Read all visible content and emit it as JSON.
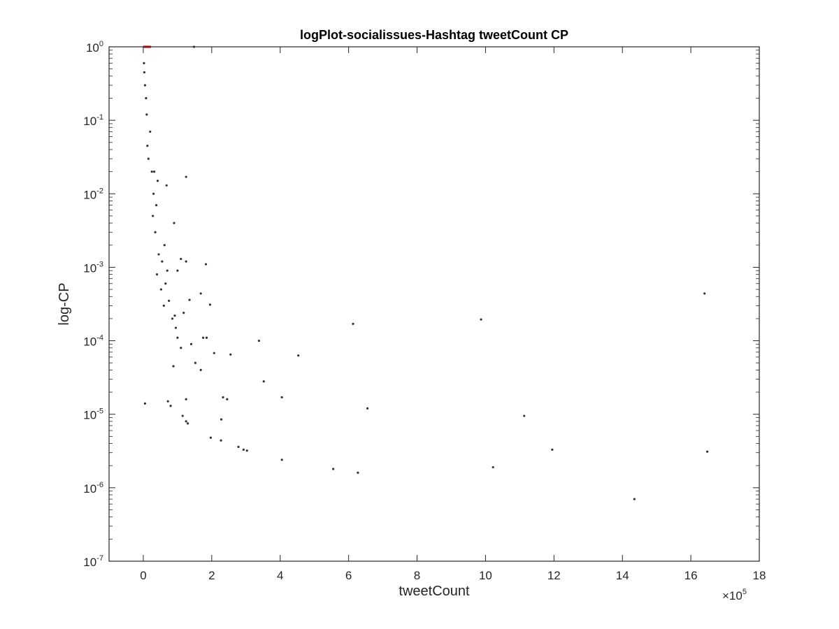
{
  "chart_data": {
    "type": "scatter",
    "title": "logPlot-socialissues-Hashtag tweetCount CP",
    "xlabel": "tweetCount",
    "ylabel": "log-CP",
    "x_multiplier_label": "×10",
    "x_multiplier_exponent": "5",
    "xlim": [
      -100000,
      1800000
    ],
    "ylim": [
      1e-07,
      1
    ],
    "yscale": "log",
    "grid": false,
    "legend": "none",
    "x_ticks": [
      0,
      200000,
      400000,
      600000,
      800000,
      1000000,
      1200000,
      1400000,
      1600000,
      1800000
    ],
    "x_tick_labels": [
      "0",
      "2",
      "4",
      "6",
      "8",
      "10",
      "12",
      "14",
      "16",
      "18"
    ],
    "y_ticks": [
      1e-07,
      1e-06,
      1e-05,
      0.0001,
      0.001,
      0.01,
      0.1,
      1
    ],
    "y_tick_labels": [
      {
        "base": "10",
        "exp": "-7"
      },
      {
        "base": "10",
        "exp": "-6"
      },
      {
        "base": "10",
        "exp": "-5"
      },
      {
        "base": "10",
        "exp": "-4"
      },
      {
        "base": "10",
        "exp": "-3"
      },
      {
        "base": "10",
        "exp": "-2"
      },
      {
        "base": "10",
        "exp": "-1"
      },
      {
        "base": "10",
        "exp": "0"
      }
    ],
    "colors": {
      "points": "#333333",
      "highlight": "#ff0000",
      "axes": "#262626"
    },
    "series": [
      {
        "color": "#333333",
        "points": [
          [
            5000,
            1.4e-05
          ],
          [
            148000,
            1.0
          ],
          [
            125000,
            0.017
          ],
          [
            90000,
            0.004
          ],
          [
            68000,
            0.013
          ],
          [
            20000,
            0.07
          ],
          [
            32000,
            0.02
          ],
          [
            42000,
            0.015
          ],
          [
            125000,
            0.0012
          ],
          [
            183000,
            0.0011
          ],
          [
            168000,
            0.00044
          ],
          [
            195000,
            0.00031
          ],
          [
            185000,
            0.00011
          ],
          [
            175000,
            0.00011
          ],
          [
            140000,
            9e-05
          ],
          [
            152000,
            5e-05
          ],
          [
            168000,
            4e-05
          ],
          [
            207000,
            6.8e-05
          ],
          [
            255000,
            6.5e-05
          ],
          [
            338000,
            0.0001
          ],
          [
            352000,
            2.8e-05
          ],
          [
            233000,
            1.7e-05
          ],
          [
            245000,
            1.6e-05
          ],
          [
            125000,
            1.6e-05
          ],
          [
            405000,
            1.7e-05
          ],
          [
            453000,
            6.3e-05
          ],
          [
            613000,
            0.00017
          ],
          [
            987000,
            0.000195
          ],
          [
            1640000,
            0.00044
          ],
          [
            655000,
            1.2e-05
          ],
          [
            1113000,
            9.5e-06
          ],
          [
            228000,
            8.5e-06
          ],
          [
            197000,
            4.8e-06
          ],
          [
            227000,
            4.4e-06
          ],
          [
            278000,
            3.6e-06
          ],
          [
            293000,
            3.3e-06
          ],
          [
            303000,
            3.2e-06
          ],
          [
            405000,
            2.4e-06
          ],
          [
            555000,
            1.8e-06
          ],
          [
            627000,
            1.6e-06
          ],
          [
            1022000,
            1.9e-06
          ],
          [
            1195000,
            3.3e-06
          ],
          [
            1648000,
            3.1e-06
          ],
          [
            1435000,
            7e-07
          ],
          [
            115000,
            9.5e-06
          ],
          [
            125000,
            8e-06
          ],
          [
            130000,
            7.5e-06
          ],
          [
            80000,
            1.3e-05
          ],
          [
            72000,
            1.5e-05
          ],
          [
            100000,
            0.00011
          ],
          [
            110000,
            8e-05
          ],
          [
            95000,
            0.00015
          ],
          [
            85000,
            0.0002
          ],
          [
            60000,
            0.0003
          ],
          [
            75000,
            0.00035
          ],
          [
            52000,
            0.0005
          ],
          [
            40000,
            0.0008
          ],
          [
            65000,
            0.0006
          ],
          [
            45000,
            0.0015
          ],
          [
            55000,
            0.0012
          ],
          [
            35000,
            0.003
          ],
          [
            28000,
            0.005
          ],
          [
            38000,
            0.007
          ],
          [
            30000,
            0.01
          ],
          [
            25000,
            0.02
          ],
          [
            15000,
            0.03
          ],
          [
            12000,
            0.045
          ],
          [
            10000,
            0.12
          ],
          [
            8000,
            0.2
          ],
          [
            5000,
            0.3
          ],
          [
            3000,
            0.45
          ],
          [
            2000,
            0.6
          ],
          [
            110000,
            0.0013
          ],
          [
            100000,
            0.0009
          ],
          [
            118000,
            0.00024
          ],
          [
            135000,
            0.00036
          ],
          [
            88000,
            4.5e-05
          ],
          [
            92000,
            0.00022
          ],
          [
            70000,
            0.0009
          ],
          [
            62000,
            0.002
          ]
        ]
      },
      {
        "color": "#ff0000",
        "points": [
          [
            2000,
            1.0
          ],
          [
            5000,
            1.0
          ],
          [
            8000,
            1.0
          ],
          [
            11000,
            1.0
          ],
          [
            14000,
            1.0
          ],
          [
            17000,
            1.0
          ],
          [
            20000,
            1.0
          ]
        ]
      }
    ]
  }
}
